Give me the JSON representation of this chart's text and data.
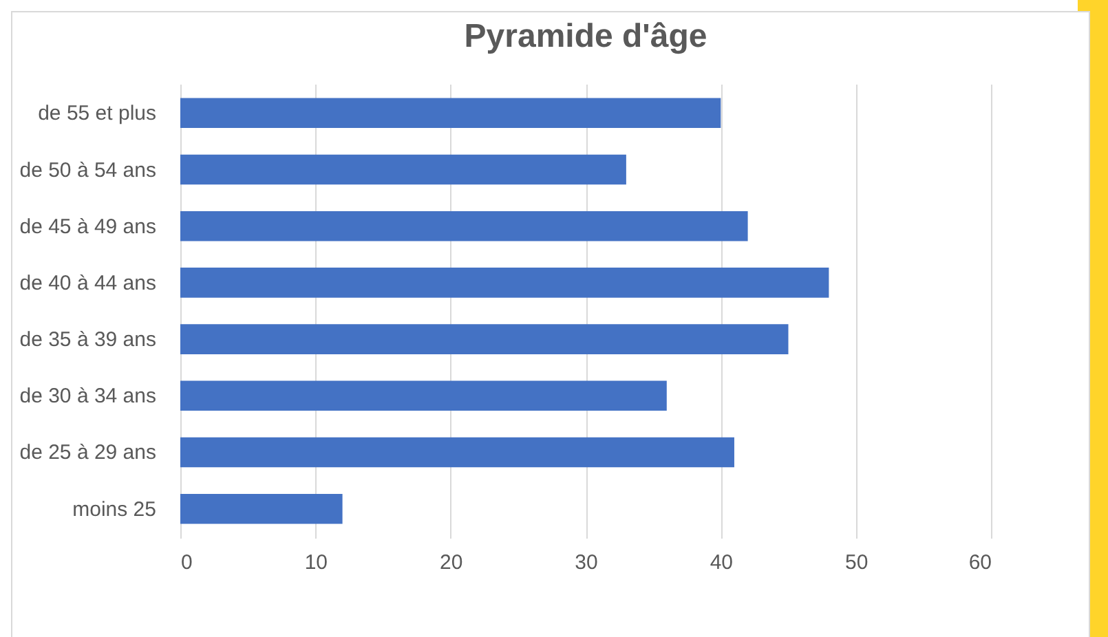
{
  "chart_data": {
    "type": "bar",
    "title": "Pyramide d'âge",
    "orientation": "horizontal",
    "categories": [
      "de 55 et plus",
      "de 50 à 54 ans",
      "de 45 à 49 ans",
      "de 40 à 44 ans",
      "de 35 à 39 ans",
      "de 30 à 34 ans",
      "de 25 à 29 ans",
      "moins 25"
    ],
    "values": [
      40,
      33,
      42,
      48,
      45,
      36,
      41,
      12
    ],
    "color": "#4472c4",
    "xlim": [
      0,
      60
    ],
    "xticks": [
      0,
      10,
      20,
      30,
      40,
      50,
      60
    ],
    "grid": "x"
  }
}
